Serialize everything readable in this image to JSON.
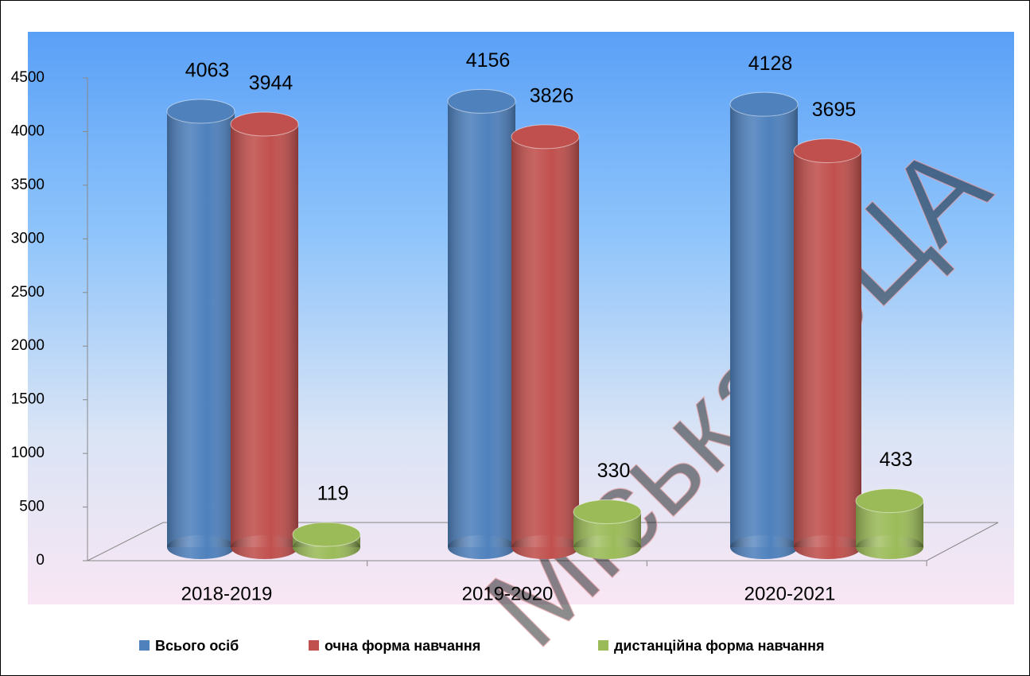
{
  "chart_data": {
    "type": "bar3d",
    "categories": [
      "2018-2019",
      "2019-2020",
      "2020-2021"
    ],
    "series": [
      {
        "name": "Всього осіб",
        "color": "#4f81bd",
        "values": [
          4063,
          4156,
          4128
        ]
      },
      {
        "name": "очна форма навчання",
        "color": "#c0504d",
        "values": [
          3944,
          3826,
          3695
        ]
      },
      {
        "name": "дистанційна форма навчання",
        "color": "#9bbb59",
        "values": [
          119,
          330,
          433
        ]
      }
    ],
    "ylim": [
      0,
      4500
    ],
    "yticks": [
      0,
      500,
      1000,
      1500,
      2000,
      2500,
      3000,
      3500,
      4000,
      4500
    ],
    "legend": "bottom",
    "watermark": "Міська ВЦА"
  }
}
